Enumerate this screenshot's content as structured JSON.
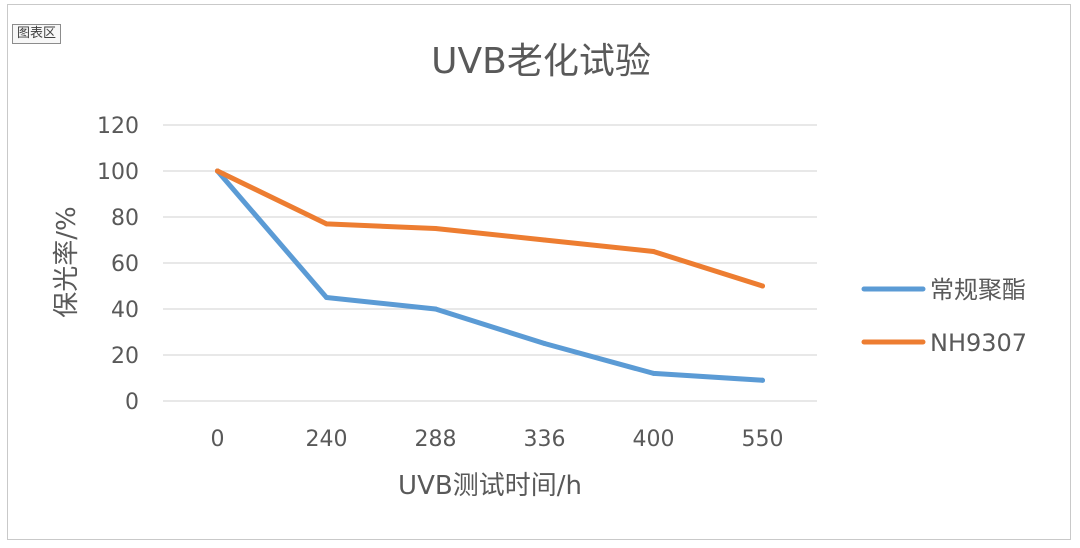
{
  "chart_area_label": "图表区",
  "chart_data": {
    "type": "line",
    "title": "UVB老化试验",
    "xlabel": "UVB测试时间/h",
    "ylabel": "保光率/%",
    "categories": [
      "0",
      "240",
      "288",
      "336",
      "400",
      "550"
    ],
    "ylim": [
      0,
      120
    ],
    "yticks": [
      0,
      20,
      40,
      60,
      80,
      100,
      120
    ],
    "grid": true,
    "legend_position": "right",
    "series": [
      {
        "name": "常规聚酯",
        "color": "#5b9bd5",
        "values": [
          100,
          45,
          40,
          25,
          12,
          9
        ]
      },
      {
        "name": "NH9307",
        "color": "#ed7d31",
        "values": [
          100,
          77,
          75,
          70,
          65,
          50
        ]
      }
    ]
  }
}
